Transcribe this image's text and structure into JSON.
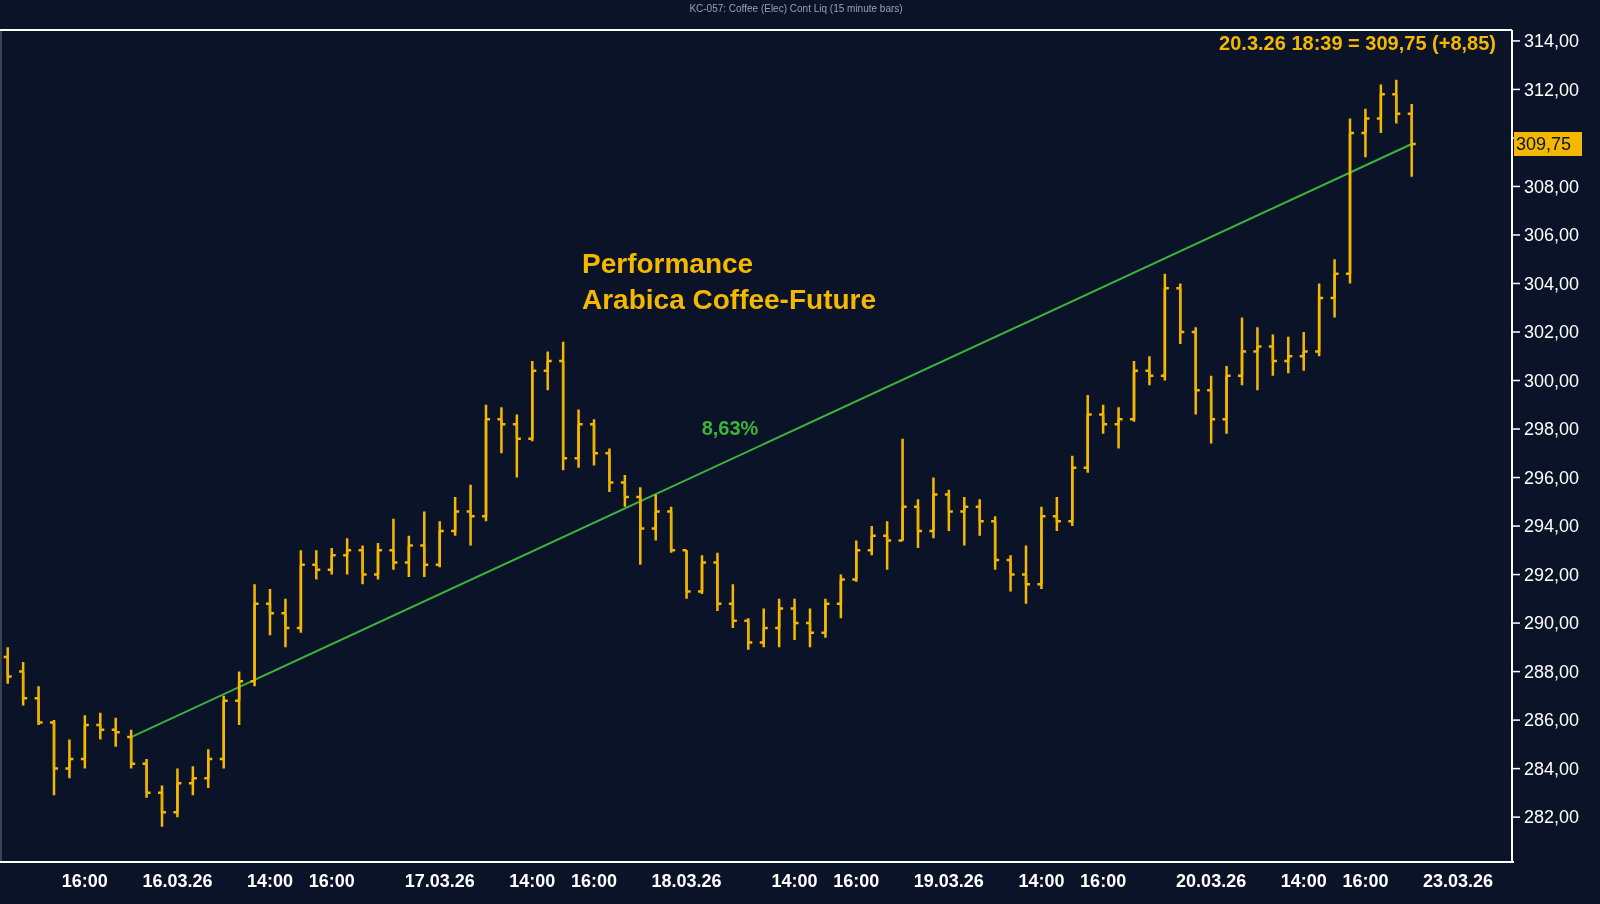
{
  "chart_data": {
    "type": "candlestick",
    "title": "Performance Arabica Coffee-Future",
    "subtitle": "KC-057: Coffee (Elec) Cont Liq (15 minute bars)",
    "color": "#f5b800",
    "categories": [
      null,
      null,
      null,
      null,
      null,
      "16:00",
      null,
      null,
      null,
      null,
      null,
      "16.03.26",
      null,
      null,
      null,
      null,
      null,
      "14:00",
      null,
      null,
      null,
      "16:00",
      null,
      null,
      null,
      null,
      null,
      null,
      "17.03.26",
      null,
      null,
      null,
      null,
      null,
      "14:00",
      null,
      null,
      null,
      "16:00",
      null,
      null,
      null,
      null,
      null,
      "18.03.26",
      null,
      null,
      null,
      null,
      null,
      null,
      "14:00",
      null,
      null,
      null,
      "16:00",
      null,
      null,
      null,
      null,
      null,
      "19.03.26",
      null,
      null,
      null,
      null,
      null,
      "14:00",
      null,
      null,
      null,
      "16:00",
      null,
      null,
      null,
      null,
      null,
      null,
      "20.03.26",
      null,
      null,
      null,
      null,
      null,
      "14:00",
      null,
      null,
      null,
      "16:00",
      null,
      null,
      null,
      null,
      null,
      "23.03.26",
      null,
      null,
      null
    ],
    "ohlc": [
      [
        288.6,
        289.0,
        287.5,
        287.8
      ],
      [
        288.0,
        288.4,
        286.6,
        286.9
      ],
      [
        286.9,
        287.4,
        285.8,
        285.9
      ],
      [
        285.9,
        286.0,
        282.9,
        284.0
      ],
      [
        284.0,
        285.2,
        283.6,
        284.4
      ],
      [
        284.4,
        286.2,
        284.0,
        285.8
      ],
      [
        285.8,
        286.3,
        285.2,
        285.6
      ],
      [
        285.6,
        286.1,
        284.9,
        285.5
      ],
      [
        285.3,
        285.6,
        284.0,
        284.2
      ],
      [
        284.2,
        284.4,
        282.8,
        283.0
      ],
      [
        283.0,
        283.3,
        281.6,
        282.2
      ],
      [
        282.2,
        284.0,
        282.0,
        283.4
      ],
      [
        283.4,
        284.1,
        282.9,
        283.6
      ],
      [
        283.6,
        284.8,
        283.2,
        284.4
      ],
      [
        284.4,
        287.0,
        284.0,
        286.8
      ],
      [
        286.8,
        288.0,
        285.8,
        287.6
      ],
      [
        287.6,
        291.6,
        287.4,
        290.8
      ],
      [
        290.8,
        291.4,
        289.5,
        290.4
      ],
      [
        290.4,
        291.0,
        289.0,
        289.8
      ],
      [
        289.8,
        293.0,
        289.6,
        292.4
      ],
      [
        292.4,
        293.0,
        291.8,
        292.2
      ],
      [
        292.2,
        293.1,
        292.0,
        292.8
      ],
      [
        292.8,
        293.5,
        292.0,
        293.0
      ],
      [
        293.0,
        293.2,
        291.6,
        292.0
      ],
      [
        292.0,
        293.3,
        291.8,
        293.0
      ],
      [
        293.0,
        294.3,
        292.2,
        292.5
      ],
      [
        292.5,
        293.6,
        291.9,
        293.2
      ],
      [
        293.2,
        294.6,
        291.9,
        292.4
      ],
      [
        292.4,
        294.2,
        292.3,
        293.8
      ],
      [
        293.8,
        295.2,
        293.6,
        294.6
      ],
      [
        294.6,
        295.7,
        293.2,
        294.4
      ],
      [
        294.4,
        299.0,
        294.2,
        298.4
      ],
      [
        298.4,
        298.9,
        297.0,
        298.2
      ],
      [
        298.2,
        298.6,
        296.0,
        297.6
      ],
      [
        297.6,
        300.8,
        297.5,
        300.4
      ],
      [
        300.4,
        301.2,
        299.6,
        300.8
      ],
      [
        300.8,
        301.6,
        296.3,
        296.8
      ],
      [
        296.8,
        298.8,
        296.4,
        298.2
      ],
      [
        298.2,
        298.4,
        296.5,
        297.0
      ],
      [
        297.0,
        297.2,
        295.4,
        295.8
      ],
      [
        295.8,
        296.1,
        294.8,
        295.2
      ],
      [
        295.2,
        295.6,
        292.4,
        293.9
      ],
      [
        293.9,
        295.3,
        293.4,
        294.6
      ],
      [
        294.6,
        294.8,
        292.9,
        293.0
      ],
      [
        293.0,
        293.0,
        291.0,
        291.3
      ],
      [
        291.3,
        292.8,
        291.2,
        292.5
      ],
      [
        292.5,
        292.9,
        290.5,
        290.8
      ],
      [
        290.8,
        291.6,
        289.8,
        290.1
      ],
      [
        290.1,
        290.2,
        288.9,
        289.2
      ],
      [
        289.2,
        290.6,
        289.0,
        289.8
      ],
      [
        289.8,
        291.0,
        289.0,
        290.6
      ],
      [
        290.6,
        291.0,
        289.3,
        290.0
      ],
      [
        290.0,
        290.6,
        289.0,
        289.6
      ],
      [
        289.6,
        291.0,
        289.4,
        290.8
      ],
      [
        290.8,
        292.0,
        290.2,
        291.8
      ],
      [
        291.8,
        293.4,
        291.7,
        293.0
      ],
      [
        293.0,
        294.0,
        292.8,
        293.6
      ],
      [
        293.6,
        294.2,
        292.2,
        293.4
      ],
      [
        293.4,
        297.6,
        293.4,
        294.8
      ],
      [
        294.8,
        295.1,
        293.1,
        293.8
      ],
      [
        293.8,
        296.0,
        293.5,
        295.3
      ],
      [
        295.3,
        295.5,
        293.8,
        294.6
      ],
      [
        294.6,
        295.2,
        293.2,
        294.8
      ],
      [
        294.8,
        295.1,
        293.6,
        294.2
      ],
      [
        294.2,
        294.4,
        292.2,
        292.6
      ],
      [
        292.6,
        292.8,
        291.3,
        292.0
      ],
      [
        292.0,
        293.2,
        290.8,
        291.6
      ],
      [
        291.6,
        294.8,
        291.4,
        294.4
      ],
      [
        294.4,
        295.2,
        293.8,
        294.2
      ],
      [
        294.2,
        296.9,
        294.0,
        296.4
      ],
      [
        296.4,
        299.4,
        296.2,
        298.6
      ],
      [
        298.6,
        299.0,
        297.8,
        298.2
      ],
      [
        298.2,
        298.9,
        297.2,
        298.4
      ],
      [
        298.4,
        300.8,
        298.3,
        300.4
      ],
      [
        300.4,
        301.0,
        299.8,
        300.2
      ],
      [
        300.2,
        304.4,
        300.0,
        303.8
      ],
      [
        303.8,
        304.0,
        301.5,
        302.0
      ],
      [
        302.0,
        302.2,
        298.6,
        299.6
      ],
      [
        299.6,
        300.2,
        297.4,
        298.4
      ],
      [
        298.4,
        300.6,
        297.8,
        300.2
      ],
      [
        300.2,
        302.6,
        299.8,
        301.2
      ],
      [
        301.2,
        302.2,
        299.6,
        301.4
      ],
      [
        301.4,
        301.9,
        300.2,
        300.8
      ],
      [
        300.8,
        301.8,
        300.3,
        301.0
      ],
      [
        301.0,
        302.0,
        300.4,
        301.2
      ],
      [
        301.2,
        304.0,
        301.0,
        303.4
      ],
      [
        303.4,
        305.0,
        302.6,
        304.4
      ],
      [
        304.4,
        310.8,
        304.0,
        310.2
      ],
      [
        310.2,
        311.2,
        309.2,
        310.8
      ],
      [
        310.8,
        312.2,
        310.2,
        311.8
      ],
      [
        311.8,
        312.4,
        310.6,
        311.0
      ],
      [
        311.0,
        311.4,
        308.4,
        309.75
      ],
      null,
      null,
      null,
      null,
      null,
      null
    ],
    "series": [
      {
        "type": "line",
        "color": "#3cb43c",
        "values": [
          null,
          null,
          null,
          null,
          null,
          null,
          null,
          null,
          285.3,
          null,
          null,
          null,
          null,
          null,
          null,
          null,
          null,
          null,
          null,
          null,
          null,
          null,
          null,
          null,
          null,
          null,
          null,
          null,
          null,
          null,
          null,
          null,
          null,
          null,
          null,
          null,
          null,
          null,
          null,
          null,
          null,
          null,
          null,
          null,
          null,
          null,
          null,
          null,
          null,
          null,
          null,
          null,
          null,
          null,
          null,
          null,
          null,
          null,
          null,
          null,
          null,
          null,
          null,
          null,
          null,
          null,
          null,
          null,
          null,
          null,
          null,
          null,
          null,
          null,
          null,
          null,
          null,
          null,
          null,
          null,
          null,
          null,
          null,
          null,
          null,
          null,
          null,
          null,
          null,
          null,
          null,
          309.75,
          null,
          null,
          null,
          null,
          null,
          null
        ]
      }
    ],
    "ylim": [
      280.15,
      314.45
    ],
    "yticks": [
      {
        "value": 282,
        "label": "282,00"
      },
      {
        "value": 284,
        "label": "284,00"
      },
      {
        "value": 286,
        "label": "286,00"
      },
      {
        "value": 288,
        "label": "288,00"
      },
      {
        "value": 290,
        "label": "290,00"
      },
      {
        "value": 292,
        "label": "292,00"
      },
      {
        "value": 294,
        "label": "294,00"
      },
      {
        "value": 296,
        "label": "296,00"
      },
      {
        "value": 298,
        "label": "298,00"
      },
      {
        "value": 300,
        "label": "300,00"
      },
      {
        "value": 302,
        "label": "302,00"
      },
      {
        "value": 304,
        "label": "304,00"
      },
      {
        "value": 306,
        "label": "306,00"
      },
      {
        "value": 308,
        "label": "308,00"
      },
      {
        "value": 310,
        "label": null
      },
      {
        "value": 312,
        "label": "312,00"
      },
      {
        "value": 314,
        "label": "314,00"
      }
    ],
    "annotations": [
      "20.3.26 18:39 = 309,75 (+8,85)",
      "8,63%",
      "309,75"
    ]
  }
}
